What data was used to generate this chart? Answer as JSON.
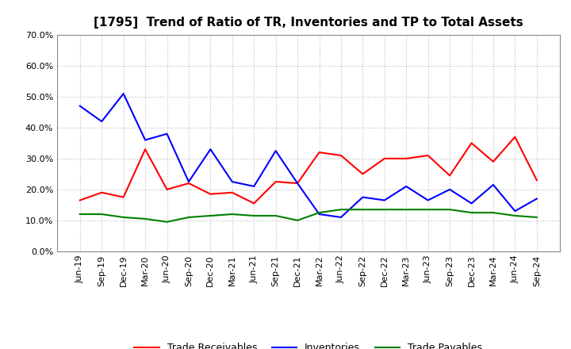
{
  "title": "[1795]  Trend of Ratio of TR, Inventories and TP to Total Assets",
  "labels": [
    "Jun-19",
    "Sep-19",
    "Dec-19",
    "Mar-20",
    "Jun-20",
    "Sep-20",
    "Dec-20",
    "Mar-21",
    "Jun-21",
    "Sep-21",
    "Dec-21",
    "Mar-22",
    "Jun-22",
    "Sep-22",
    "Dec-22",
    "Mar-23",
    "Jun-23",
    "Sep-23",
    "Dec-23",
    "Mar-24",
    "Jun-24",
    "Sep-24"
  ],
  "trade_receivables": [
    0.165,
    0.19,
    0.175,
    0.33,
    0.2,
    0.22,
    0.185,
    0.19,
    0.155,
    0.225,
    0.22,
    0.32,
    0.31,
    0.25,
    0.3,
    0.3,
    0.31,
    0.245,
    0.35,
    0.29,
    0.37,
    0.23
  ],
  "inventories": [
    0.47,
    0.42,
    0.51,
    0.36,
    0.38,
    0.225,
    0.33,
    0.225,
    0.21,
    0.325,
    0.22,
    0.12,
    0.11,
    0.175,
    0.165,
    0.21,
    0.165,
    0.2,
    0.155,
    0.215,
    0.13,
    0.17
  ],
  "trade_payables": [
    0.12,
    0.12,
    0.11,
    0.105,
    0.095,
    0.11,
    0.115,
    0.12,
    0.115,
    0.115,
    0.1,
    0.125,
    0.135,
    0.135,
    0.135,
    0.135,
    0.135,
    0.135,
    0.125,
    0.125,
    0.115,
    0.11
  ],
  "tr_color": "#ff0000",
  "inv_color": "#0000ff",
  "tp_color": "#008000",
  "background_color": "#ffffff",
  "grid_color": "#bbbbbb",
  "ylim": [
    0.0,
    0.7
  ],
  "yticks": [
    0.0,
    0.1,
    0.2,
    0.3,
    0.4,
    0.5,
    0.6,
    0.7
  ],
  "legend_labels": [
    "Trade Receivables",
    "Inventories",
    "Trade Payables"
  ],
  "title_fontsize": 11,
  "axis_fontsize": 8,
  "legend_fontsize": 9
}
